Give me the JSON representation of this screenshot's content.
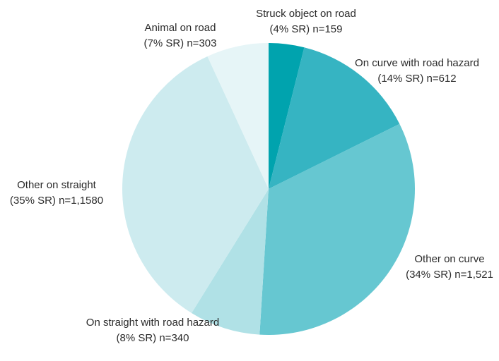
{
  "chart_data": {
    "type": "pie",
    "categories": [
      "Struck object on road",
      "On curve with road hazard",
      "Other on curve",
      "On straight with road hazard",
      "Other on straight",
      "Animal on road"
    ],
    "values": [
      4,
      14,
      34,
      8,
      35,
      7
    ],
    "value_labels": [
      "(4% SR) n=159",
      "(14% SR) n=612",
      "(34% SR) n=1,521",
      "(8% SR) n=340",
      "(35% SR) n=1,1580",
      "(7% SR) n=303"
    ],
    "colors": [
      "#00a3ae",
      "#36b4c2",
      "#66c7d1",
      "#b0e1e6",
      "#cdebef",
      "#e6f5f7"
    ]
  }
}
